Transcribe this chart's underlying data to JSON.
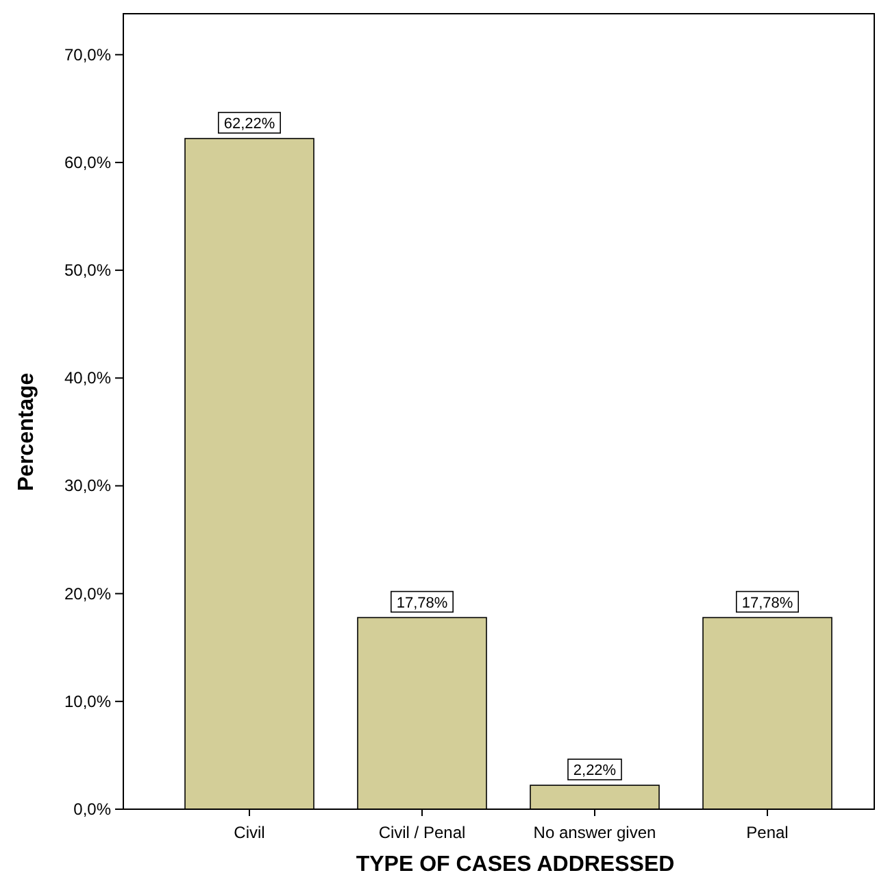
{
  "chart_data": {
    "type": "bar",
    "xlabel": "TYPE OF CASES ADDRESSED",
    "ylabel": "Percentage",
    "categories": [
      "Civil",
      "Civil / Penal",
      "No answer given",
      "Penal"
    ],
    "values": [
      62.22,
      17.78,
      2.22,
      17.78
    ],
    "value_labels": [
      "62,22%",
      "17,78%",
      "2,22%",
      "17,78%"
    ],
    "color": "#d3ce98",
    "ylim": [
      0,
      73.8
    ],
    "yticks": [
      {
        "value": 0,
        "label": "0,0%"
      },
      {
        "value": 10,
        "label": "10,0%"
      },
      {
        "value": 20,
        "label": "20,0%"
      },
      {
        "value": 30,
        "label": "30,0%"
      },
      {
        "value": 40,
        "label": "40,0%"
      },
      {
        "value": 50,
        "label": "50,0%"
      },
      {
        "value": 60,
        "label": "60,0%"
      },
      {
        "value": 70,
        "label": "70,0%"
      }
    ],
    "grid": false
  }
}
